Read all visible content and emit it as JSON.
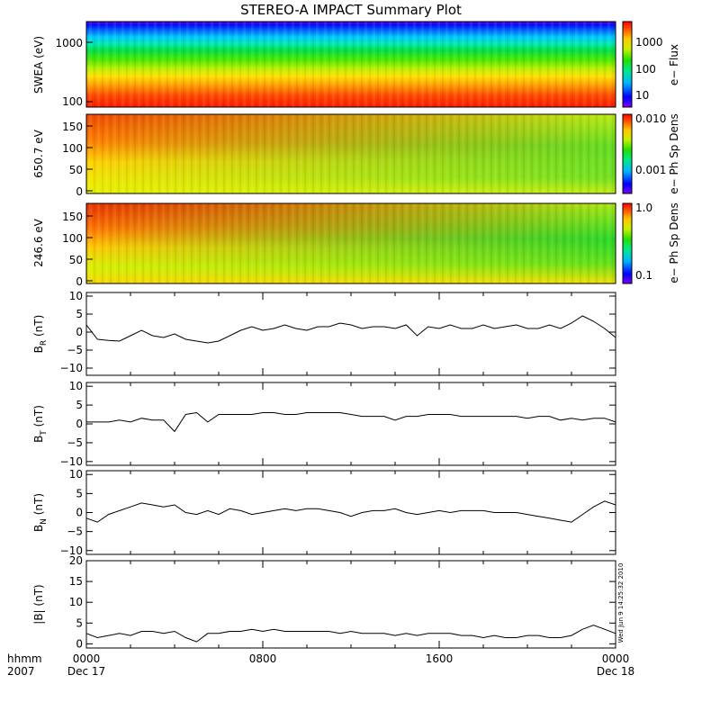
{
  "title": "STEREO-A IMPACT Summary Plot",
  "footer": {
    "hhmm_label": "hhmm",
    "year_label": "2007",
    "start_date": "Dec 17",
    "end_date": "Dec 18",
    "x_ticks": [
      "0000",
      "0800",
      "1600",
      "0000"
    ]
  },
  "timestamp_note": "Wed Jun 9 14:25:32 2010",
  "colors": {
    "trace": "#000000",
    "frame": "#000000",
    "background": "#ffffff"
  },
  "chart_data": [
    {
      "type": "heatmap",
      "ylabel": "SWEA (eV)",
      "yscale": "log",
      "ylim": [
        100,
        2000
      ],
      "yticks": [
        "1000",
        "100"
      ],
      "colorbar": {
        "label": "e− Flux",
        "scale": "log",
        "ticks": [
          "1000",
          "100",
          "10"
        ],
        "range": [
          4,
          5000
        ]
      }
    },
    {
      "type": "heatmap",
      "ylabel": "650.7 eV",
      "ylim": [
        0,
        180
      ],
      "yticks": [
        "150",
        "100",
        "50",
        "0"
      ],
      "colorbar": {
        "label": "e− Ph Sp Dens",
        "scale": "log",
        "ticks": [
          "0.010",
          "0.001"
        ],
        "range": [
          0.0003,
          0.013
        ]
      }
    },
    {
      "type": "heatmap",
      "ylabel": "246.6 eV",
      "ylim": [
        0,
        180
      ],
      "yticks": [
        "150",
        "100",
        "50",
        "0"
      ],
      "colorbar": {
        "label": "e− Ph Sp Dens",
        "scale": "log",
        "ticks": [
          "1.0",
          "0.1"
        ],
        "range": [
          0.05,
          1.0
        ]
      }
    },
    {
      "type": "line",
      "ylabel_main": "B",
      "ylabel_sub": "R",
      "ylabel_unit": " (nT)",
      "ylim": [
        -12,
        11
      ],
      "yticks": [
        "10",
        "5",
        "0",
        "−5",
        "−10"
      ],
      "x": [
        0,
        0.5,
        1,
        1.5,
        2,
        2.5,
        3,
        3.5,
        4,
        4.5,
        5,
        5.5,
        6,
        6.5,
        7,
        7.5,
        8,
        8.5,
        9,
        9.5,
        10,
        10.5,
        11,
        11.5,
        12,
        12.5,
        13,
        13.5,
        14,
        14.5,
        15,
        15.5,
        16,
        16.5,
        17,
        17.5,
        18,
        18.5,
        19,
        19.5,
        20,
        20.5,
        21,
        21.5,
        22,
        22.5,
        23,
        23.5,
        24
      ],
      "y": [
        2.0,
        -2.0,
        -2.3,
        -2.5,
        -1.0,
        0.5,
        -1.0,
        -1.5,
        -0.5,
        -2.0,
        -2.5,
        -3.0,
        -2.5,
        -1.0,
        0.5,
        1.5,
        0.5,
        1.0,
        2.0,
        1.0,
        0.5,
        1.5,
        1.5,
        2.5,
        2.0,
        1.0,
        1.5,
        1.5,
        1.0,
        2.0,
        -1.0,
        1.5,
        1.0,
        2.0,
        1.0,
        1.0,
        2.0,
        1.0,
        1.5,
        2.0,
        1.0,
        1.0,
        2.0,
        1.0,
        2.5,
        4.5,
        3.0,
        1.0,
        -1.5
      ]
    },
    {
      "type": "line",
      "ylabel_main": "B",
      "ylabel_sub": "T",
      "ylabel_unit": " (nT)",
      "ylim": [
        -11,
        11
      ],
      "yticks": [
        "10",
        "5",
        "0",
        "−5",
        "−10"
      ],
      "x": [
        0,
        0.5,
        1,
        1.5,
        2,
        2.5,
        3,
        3.5,
        4,
        4.5,
        5,
        5.5,
        6,
        6.5,
        7,
        7.5,
        8,
        8.5,
        9,
        9.5,
        10,
        10.5,
        11,
        11.5,
        12,
        12.5,
        13,
        13.5,
        14,
        14.5,
        15,
        15.5,
        16,
        16.5,
        17,
        17.5,
        18,
        18.5,
        19,
        19.5,
        20,
        20.5,
        21,
        21.5,
        22,
        22.5,
        23,
        23.5,
        24
      ],
      "y": [
        0.5,
        0.5,
        0.5,
        1.0,
        0.5,
        1.5,
        1.0,
        1.0,
        -2.0,
        2.5,
        3.0,
        0.5,
        2.5,
        2.5,
        2.5,
        2.5,
        3.0,
        3.0,
        2.5,
        2.5,
        3.0,
        3.0,
        3.0,
        3.0,
        2.5,
        2.0,
        2.0,
        2.0,
        1.0,
        2.0,
        2.0,
        2.5,
        2.5,
        2.5,
        2.0,
        2.0,
        2.0,
        2.0,
        2.0,
        2.0,
        1.5,
        2.0,
        2.0,
        1.0,
        1.5,
        1.0,
        1.5,
        1.5,
        0.5
      ]
    },
    {
      "type": "line",
      "ylabel_main": "B",
      "ylabel_sub": "N",
      "ylabel_unit": " (nT)",
      "ylim": [
        -11,
        11
      ],
      "yticks": [
        "10",
        "5",
        "0",
        "−5",
        "−10"
      ],
      "x": [
        0,
        0.5,
        1,
        1.5,
        2,
        2.5,
        3,
        3.5,
        4,
        4.5,
        5,
        5.5,
        6,
        6.5,
        7,
        7.5,
        8,
        8.5,
        9,
        9.5,
        10,
        10.5,
        11,
        11.5,
        12,
        12.5,
        13,
        13.5,
        14,
        14.5,
        15,
        15.5,
        16,
        16.5,
        17,
        17.5,
        18,
        18.5,
        19,
        19.5,
        20,
        20.5,
        21,
        21.5,
        22,
        22.5,
        23,
        23.5,
        24
      ],
      "y": [
        -1.5,
        -2.5,
        -0.5,
        0.5,
        1.5,
        2.5,
        2.0,
        1.5,
        2.0,
        0.0,
        -0.5,
        0.5,
        -0.5,
        1.0,
        0.5,
        -0.5,
        0.0,
        0.5,
        1.0,
        0.5,
        1.0,
        1.0,
        0.5,
        0.0,
        -1.0,
        0.0,
        0.5,
        0.5,
        1.0,
        0.0,
        -0.5,
        0.0,
        0.5,
        0.0,
        0.5,
        0.5,
        0.5,
        0.0,
        0.0,
        0.0,
        -0.5,
        -1.0,
        -1.5,
        -2.0,
        -2.5,
        -0.5,
        1.5,
        3.0,
        2.0
      ]
    },
    {
      "type": "line",
      "ylabel_main": "|B| (nT)",
      "ylim": [
        -1,
        20
      ],
      "yticks": [
        "20",
        "15",
        "10",
        "5",
        "0"
      ],
      "x": [
        0,
        0.5,
        1,
        1.5,
        2,
        2.5,
        3,
        3.5,
        4,
        4.5,
        5,
        5.5,
        6,
        6.5,
        7,
        7.5,
        8,
        8.5,
        9,
        9.5,
        10,
        10.5,
        11,
        11.5,
        12,
        12.5,
        13,
        13.5,
        14,
        14.5,
        15,
        15.5,
        16,
        16.5,
        17,
        17.5,
        18,
        18.5,
        19,
        19.5,
        20,
        20.5,
        21,
        21.5,
        22,
        22.5,
        23,
        23.5,
        24
      ],
      "y": [
        2.5,
        1.5,
        2.0,
        2.5,
        2.0,
        3.0,
        3.0,
        2.5,
        3.0,
        1.5,
        0.5,
        2.5,
        2.5,
        3.0,
        3.0,
        3.5,
        3.0,
        3.5,
        3.0,
        3.0,
        3.0,
        3.0,
        3.0,
        2.5,
        3.0,
        2.5,
        2.5,
        2.5,
        2.0,
        2.5,
        2.0,
        2.5,
        2.5,
        2.5,
        2.0,
        2.0,
        1.5,
        2.0,
        1.5,
        1.5,
        2.0,
        2.0,
        1.5,
        1.5,
        2.0,
        3.5,
        4.5,
        3.5,
        2.5
      ]
    }
  ]
}
